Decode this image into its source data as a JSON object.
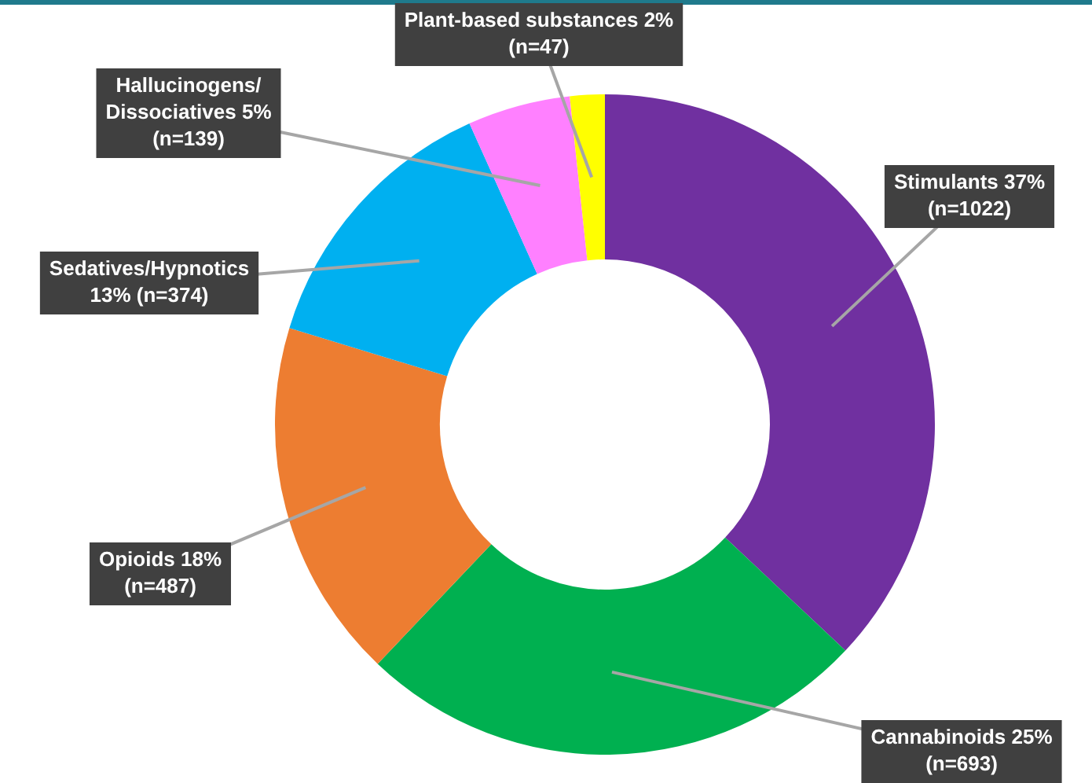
{
  "chart_data": {
    "type": "donut",
    "categories": [
      "Stimulants",
      "Cannabinoids",
      "Opioids",
      "Sedatives/Hypnotics",
      "Hallucinogens/Dissociatives",
      "Plant-based substances"
    ],
    "values": [
      1022,
      693,
      487,
      374,
      139,
      47
    ],
    "colors": [
      "#7030a0",
      "#00b050",
      "#ed7d31",
      "#00b0f0",
      "#ff80ff",
      "#ffff00"
    ],
    "value_labels": [
      "37% (n=1022)",
      "25% (n=693)",
      "18% (n=487)",
      "13% (n=374)",
      "5% (n=139)",
      "2% (n=47)"
    ]
  }
}
